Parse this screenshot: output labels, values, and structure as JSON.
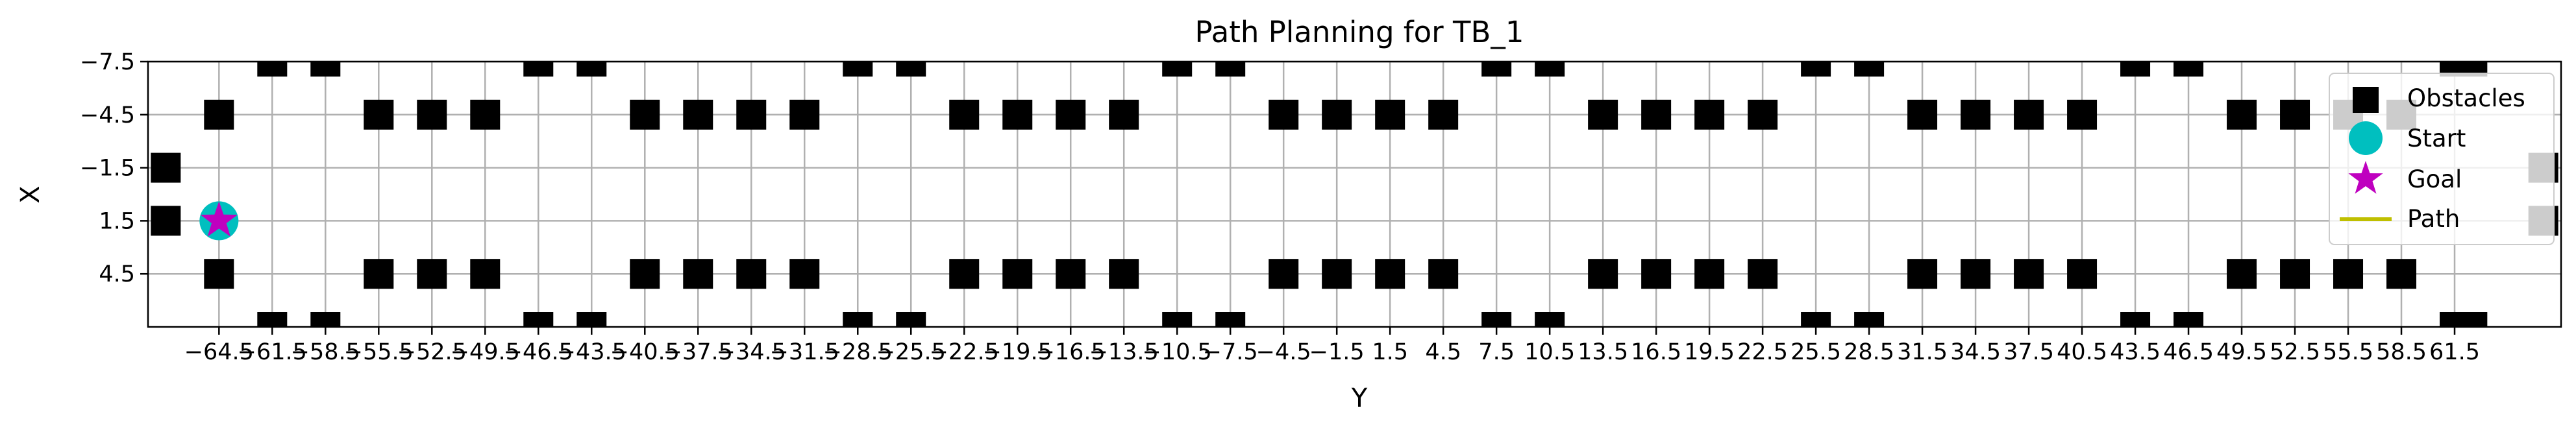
{
  "chart_data": {
    "type": "scatter",
    "title": "Path Planning for TB_1",
    "xlabel": "Y",
    "ylabel": "X",
    "xlim": [
      -68.5,
      67.5
    ],
    "ylim": [
      7.5,
      -7.5
    ],
    "x_ticks": [
      -64.5,
      -61.5,
      -58.5,
      -55.5,
      -52.5,
      -49.5,
      -46.5,
      -43.5,
      -40.5,
      -37.5,
      -34.5,
      -31.5,
      -28.5,
      -25.5,
      -22.5,
      -19.5,
      -16.5,
      -13.5,
      -10.5,
      -7.5,
      -4.5,
      -1.5,
      1.5,
      4.5,
      7.5,
      10.5,
      13.5,
      16.5,
      19.5,
      22.5,
      25.5,
      28.5,
      31.5,
      34.5,
      37.5,
      40.5,
      43.5,
      46.5,
      49.5,
      52.5,
      55.5,
      58.5,
      61.5
    ],
    "x_tick_labels": [
      "−64.5",
      "−61.5",
      "−58.5",
      "−55.5",
      "−52.5",
      "−49.5",
      "−46.5",
      "−43.5",
      "−40.5",
      "−37.5",
      "−34.5",
      "−31.5",
      "−28.5",
      "−25.5",
      "−22.5",
      "−19.5",
      "−16.5",
      "−13.5",
      "−10.5",
      "−7.5",
      "−4.5",
      "−1.5",
      "1.5",
      "4.5",
      "7.5",
      "10.5",
      "13.5",
      "16.5",
      "19.5",
      "22.5",
      "25.5",
      "28.5",
      "31.5",
      "34.5",
      "37.5",
      "40.5",
      "43.5",
      "46.5",
      "49.5",
      "52.5",
      "55.5",
      "58.5",
      "61.5"
    ],
    "y_ticks": [
      -7.5,
      -4.5,
      -1.5,
      1.5,
      4.5
    ],
    "y_tick_labels": [
      "−7.5",
      "−4.5",
      "−1.5",
      "1.5",
      "4.5"
    ],
    "grid": true,
    "legend_position": "top-right",
    "series": [
      {
        "name": "Obstacles",
        "marker": "square",
        "color": "#000000",
        "note_rows": "obstacles at X=-7.5 and X=7.5 (top/bottom edges), X=-4.5 and X=4.5 (inner rows)",
        "points": [
          [
            -61.5,
            -7.5
          ],
          [
            -58.5,
            -7.5
          ],
          [
            -46.5,
            -7.5
          ],
          [
            -43.5,
            -7.5
          ],
          [
            -28.5,
            -7.5
          ],
          [
            -25.5,
            -7.5
          ],
          [
            -10.5,
            -7.5
          ],
          [
            -7.5,
            -7.5
          ],
          [
            7.5,
            -7.5
          ],
          [
            10.5,
            -7.5
          ],
          [
            25.5,
            -7.5
          ],
          [
            28.5,
            -7.5
          ],
          [
            43.5,
            -7.5
          ],
          [
            46.5,
            -7.5
          ],
          [
            61.5,
            -7.5
          ],
          [
            62.5,
            -7.5
          ],
          [
            -64.5,
            -4.5
          ],
          [
            -55.5,
            -4.5
          ],
          [
            -52.5,
            -4.5
          ],
          [
            -49.5,
            -4.5
          ],
          [
            -40.5,
            -4.5
          ],
          [
            -37.5,
            -4.5
          ],
          [
            -34.5,
            -4.5
          ],
          [
            -31.5,
            -4.5
          ],
          [
            -22.5,
            -4.5
          ],
          [
            -19.5,
            -4.5
          ],
          [
            -16.5,
            -4.5
          ],
          [
            -13.5,
            -4.5
          ],
          [
            -4.5,
            -4.5
          ],
          [
            -1.5,
            -4.5
          ],
          [
            1.5,
            -4.5
          ],
          [
            4.5,
            -4.5
          ],
          [
            13.5,
            -4.5
          ],
          [
            16.5,
            -4.5
          ],
          [
            19.5,
            -4.5
          ],
          [
            22.5,
            -4.5
          ],
          [
            31.5,
            -4.5
          ],
          [
            34.5,
            -4.5
          ],
          [
            37.5,
            -4.5
          ],
          [
            40.5,
            -4.5
          ],
          [
            49.5,
            -4.5
          ],
          [
            52.5,
            -4.5
          ],
          [
            55.5,
            -4.5
          ],
          [
            58.5,
            -4.5
          ],
          [
            -64.5,
            4.5
          ],
          [
            -55.5,
            4.5
          ],
          [
            -52.5,
            4.5
          ],
          [
            -49.5,
            4.5
          ],
          [
            -40.5,
            4.5
          ],
          [
            -37.5,
            4.5
          ],
          [
            -34.5,
            4.5
          ],
          [
            -31.5,
            4.5
          ],
          [
            -22.5,
            4.5
          ],
          [
            -19.5,
            4.5
          ],
          [
            -16.5,
            4.5
          ],
          [
            -13.5,
            4.5
          ],
          [
            -4.5,
            4.5
          ],
          [
            -1.5,
            4.5
          ],
          [
            1.5,
            4.5
          ],
          [
            4.5,
            4.5
          ],
          [
            13.5,
            4.5
          ],
          [
            16.5,
            4.5
          ],
          [
            19.5,
            4.5
          ],
          [
            22.5,
            4.5
          ],
          [
            31.5,
            4.5
          ],
          [
            34.5,
            4.5
          ],
          [
            37.5,
            4.5
          ],
          [
            40.5,
            4.5
          ],
          [
            49.5,
            4.5
          ],
          [
            52.5,
            4.5
          ],
          [
            55.5,
            4.5
          ],
          [
            58.5,
            4.5
          ],
          [
            -61.5,
            7.5
          ],
          [
            -58.5,
            7.5
          ],
          [
            -46.5,
            7.5
          ],
          [
            -43.5,
            7.5
          ],
          [
            -28.5,
            7.5
          ],
          [
            -25.5,
            7.5
          ],
          [
            -10.5,
            7.5
          ],
          [
            -7.5,
            7.5
          ],
          [
            7.5,
            7.5
          ],
          [
            10.5,
            7.5
          ],
          [
            25.5,
            7.5
          ],
          [
            28.5,
            7.5
          ],
          [
            43.5,
            7.5
          ],
          [
            46.5,
            7.5
          ],
          [
            61.5,
            7.5
          ],
          [
            62.5,
            7.5
          ],
          [
            -67.5,
            -1.5
          ],
          [
            -67.5,
            1.5
          ],
          [
            66.5,
            -1.5
          ],
          [
            66.5,
            1.5
          ]
        ]
      },
      {
        "name": "Start",
        "marker": "circle",
        "color": "#00bfbf",
        "points": [
          [
            -64.5,
            1.5
          ]
        ]
      },
      {
        "name": "Goal",
        "marker": "star",
        "color": "#bf00bf",
        "points": [
          [
            -64.5,
            1.5
          ]
        ]
      },
      {
        "name": "Path",
        "marker": "line",
        "color": "#bfbf00",
        "points": []
      }
    ]
  }
}
